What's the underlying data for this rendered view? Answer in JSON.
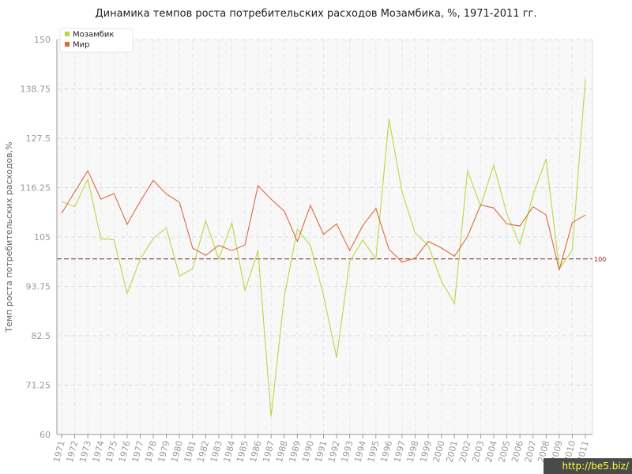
{
  "chart_data": {
    "type": "line",
    "title": "Динамика темпов роста потребительских расходов Мозамбика, %, 1971-2011 гг.",
    "xlabel": "",
    "ylabel": "Темп роста потребительских расходов,%",
    "ylim": [
      60,
      150
    ],
    "yticks": [
      "60",
      "71.25",
      "82.5",
      "93.75",
      "105",
      "116.25",
      "127.5",
      "138.75",
      "150"
    ],
    "categories": [
      "1971",
      "1972",
      "1973",
      "1974",
      "1975",
      "1976",
      "1977",
      "1978",
      "1979",
      "1980",
      "1981",
      "1982",
      "1983",
      "1984",
      "1985",
      "1986",
      "1987",
      "1988",
      "1989",
      "1990",
      "1991",
      "1992",
      "1993",
      "1994",
      "1995",
      "1996",
      "1997",
      "1998",
      "1999",
      "2000",
      "2001",
      "2002",
      "2003",
      "2004",
      "2005",
      "2006",
      "2007",
      "2008",
      "2009",
      "2010",
      "2011"
    ],
    "grid": true,
    "legend_position": "top-left",
    "reference_line": {
      "value": 100,
      "label": "100",
      "color": "#8b2020"
    },
    "series": [
      {
        "name": "Мозамбик",
        "color": "#b8d843",
        "values": [
          113.1,
          111.9,
          118.2,
          104.6,
          104.4,
          92.1,
          99.9,
          104.7,
          107.1,
          96.1,
          97.8,
          108.7,
          100.0,
          108.2,
          92.8,
          101.9,
          64.1,
          91.4,
          106.8,
          103.1,
          91.7,
          77.5,
          99.4,
          104.3,
          100.0,
          131.9,
          115.3,
          105.9,
          103.1,
          95.0,
          89.8,
          120.1,
          112.1,
          121.4,
          110.3,
          103.3,
          114.6,
          122.8,
          97.7,
          102.0,
          141.0
        ]
      },
      {
        "name": "Мир",
        "color": "#dd6a3c",
        "values": [
          110.4,
          115.3,
          120.1,
          113.6,
          114.9,
          107.9,
          113.1,
          117.9,
          114.8,
          112.9,
          102.5,
          100.8,
          103.1,
          101.9,
          103.2,
          116.7,
          113.6,
          110.9,
          104.0,
          112.2,
          105.6,
          108.0,
          101.9,
          107.6,
          111.5,
          102.2,
          99.3,
          100.2,
          104.0,
          102.5,
          100.6,
          105.1,
          112.3,
          111.6,
          108.0,
          107.5,
          111.9,
          110.0,
          97.5,
          108.3,
          110.0
        ]
      }
    ]
  },
  "watermark": "http://be5.biz/"
}
